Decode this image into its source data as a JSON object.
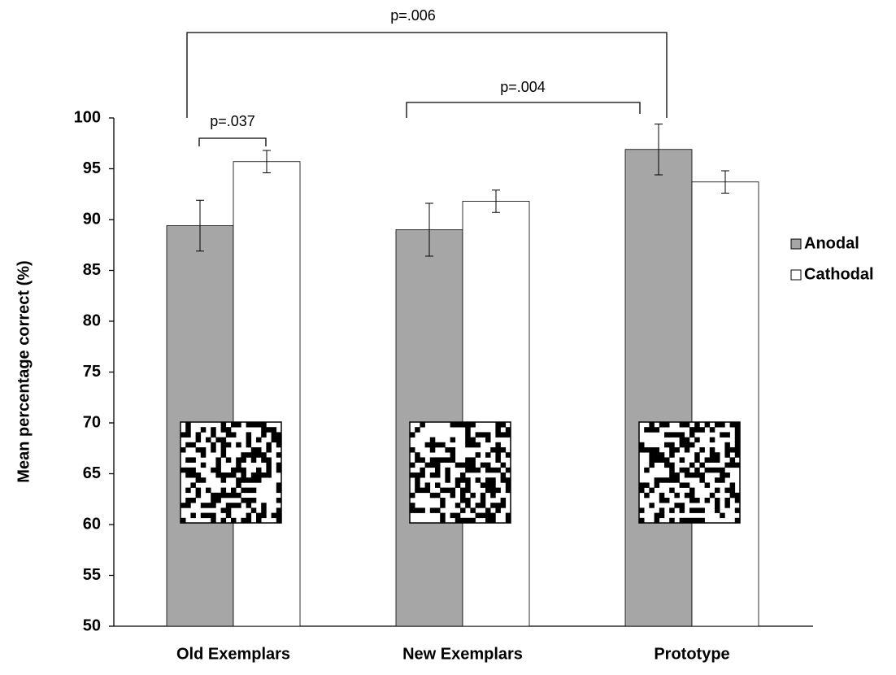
{
  "chart_data": {
    "type": "bar",
    "y_label": "Mean percentage correct (%)",
    "categories": [
      "Old Exemplars",
      "New Exemplars",
      "Prototype"
    ],
    "series": [
      {
        "name": "Anodal",
        "color": "#a6a6a6",
        "values": [
          89.4,
          89.0,
          96.9
        ],
        "errors": [
          2.5,
          2.6,
          2.5
        ]
      },
      {
        "name": "Cathodal",
        "color": "#ffffff",
        "values": [
          95.7,
          91.8,
          93.7
        ],
        "errors": [
          1.1,
          1.1,
          1.1
        ]
      }
    ],
    "ylim": [
      50,
      100
    ],
    "yticks": [
      50,
      55,
      60,
      65,
      70,
      75,
      80,
      85,
      90,
      95,
      100
    ],
    "grid": false,
    "legend": "right",
    "annotations": [
      "p=.037",
      "p=.004",
      "p=.006"
    ]
  }
}
